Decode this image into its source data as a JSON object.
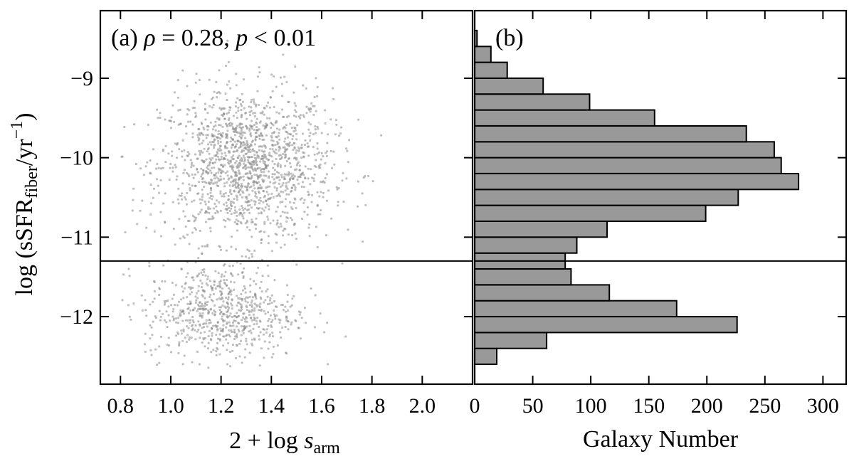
{
  "chart_data": [
    {
      "panel": "a",
      "type": "scatter",
      "annotation": {
        "prefix": "(a) ",
        "rho_symbol": "ρ",
        "rho_value": " = 0.28, ",
        "p_symbol": "p",
        "p_value": " < 0.01"
      },
      "xlabel": {
        "text": "2 + log ",
        "italic": "s",
        "sub": "arm"
      },
      "ylabel": {
        "text": "log (sSFR",
        "sub": "fiber",
        "tail": "/yr",
        "sup": "−1",
        "close": ")"
      },
      "xlim": [
        0.72,
        2.2
      ],
      "ylim": [
        -12.85,
        -8.15
      ],
      "xticks": [
        0.8,
        1.0,
        1.2,
        1.4,
        1.6,
        1.8,
        2.0
      ],
      "xtick_labels": [
        "0.8",
        "1.0",
        "1.2",
        "1.4",
        "1.6",
        "1.8",
        "2.0"
      ],
      "yticks": [
        -9,
        -10,
        -11,
        -12
      ],
      "ytick_labels": [
        "−9",
        "−10",
        "−11",
        "−12"
      ],
      "hline": -11.3,
      "clusters": [
        {
          "x_mean": 1.3,
          "x_sd": 0.17,
          "y_mean": -10.1,
          "y_sd": 0.48,
          "n": 1550
        },
        {
          "x_mean": 1.2,
          "x_sd": 0.15,
          "y_mean": -11.95,
          "y_sd": 0.3,
          "n": 700
        }
      ],
      "point_color": "#8a8a8a",
      "grid": false
    },
    {
      "panel": "b",
      "type": "bar",
      "orientation": "horizontal",
      "panel_label": "(b)",
      "xlabel": "Galaxy Number",
      "xlim": [
        0,
        320
      ],
      "xticks": [
        0,
        50,
        100,
        150,
        200,
        250,
        300
      ],
      "xtick_labels": [
        "0",
        "50",
        "100",
        "150",
        "200",
        "250",
        "300"
      ],
      "ylim": [
        -12.85,
        -8.15
      ],
      "bin_width": 0.2,
      "bin_centers": [
        -12.5,
        -12.3,
        -12.1,
        -11.9,
        -11.7,
        -11.5,
        -11.3,
        -11.1,
        -10.9,
        -10.7,
        -10.5,
        -10.3,
        -10.1,
        -9.9,
        -9.7,
        -9.5,
        -9.3,
        -9.1,
        -8.9,
        -8.7,
        -8.5
      ],
      "counts": [
        19,
        62,
        226,
        174,
        116,
        83,
        78,
        88,
        114,
        199,
        227,
        279,
        264,
        258,
        234,
        155,
        99,
        59,
        28,
        14,
        2
      ],
      "hline": -11.3,
      "bar_color": "#999999",
      "grid": false
    }
  ]
}
